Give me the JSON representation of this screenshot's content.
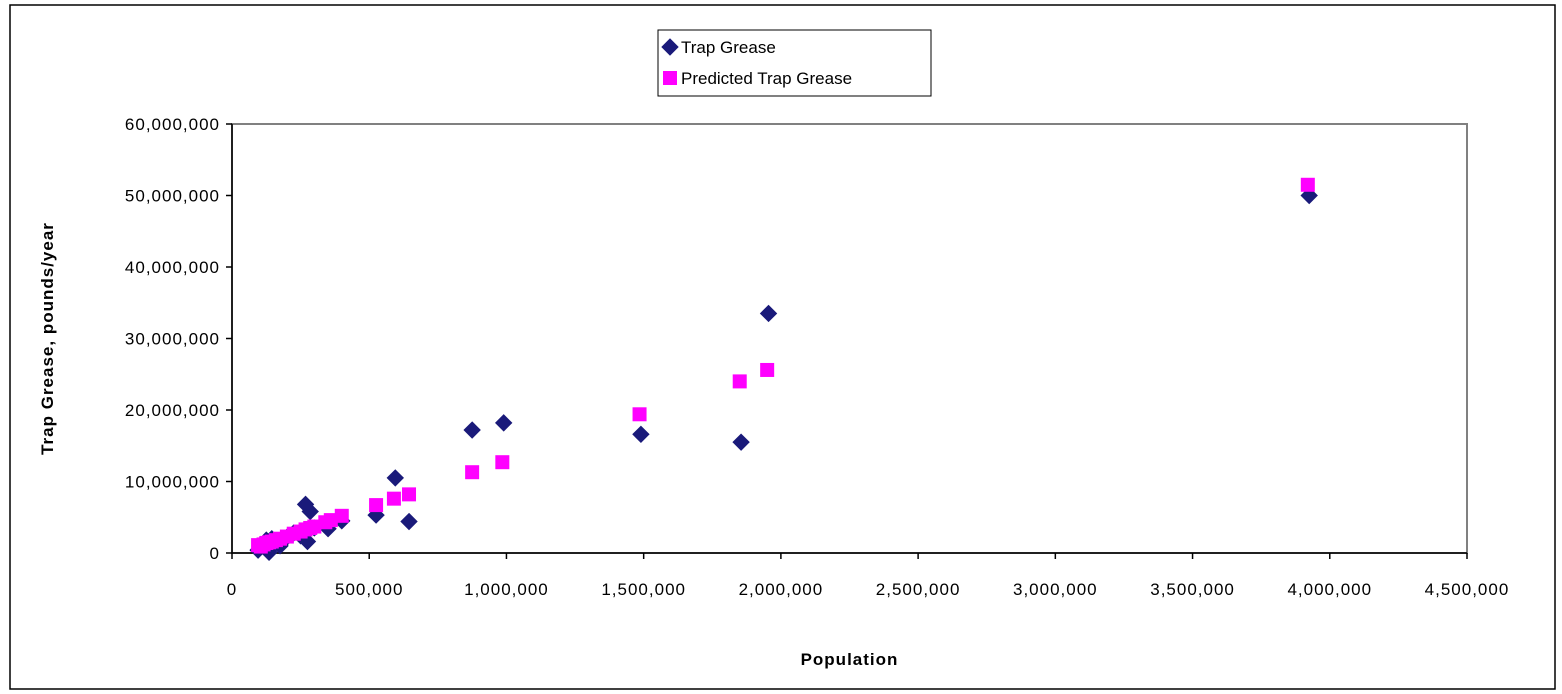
{
  "chart_data": {
    "type": "scatter",
    "title": "",
    "xlabel": "Population",
    "ylabel": "Trap Grease, pounds/year",
    "xlim": [
      0,
      4500000
    ],
    "ylim": [
      0,
      60000000
    ],
    "x_ticks": [
      0,
      500000,
      1000000,
      1500000,
      2000000,
      2500000,
      3000000,
      3500000,
      4000000,
      4500000
    ],
    "y_ticks": [
      0,
      10000000,
      20000000,
      30000000,
      40000000,
      50000000,
      60000000
    ],
    "x_tick_labels": [
      "0",
      "500,000",
      "1,000,000",
      "1,500,000",
      "2,000,000",
      "2,500,000",
      "3,000,000",
      "3,500,000",
      "4,000,000",
      "4,500,000"
    ],
    "y_tick_labels": [
      "0",
      "10,000,000",
      "20,000,000",
      "30,000,000",
      "40,000,000",
      "50,000,000",
      "60,000,000"
    ],
    "grid": false,
    "legend_position": "top-center",
    "series": [
      {
        "name": "Trap Grease",
        "marker": "diamond",
        "color": "#1a1a7a",
        "points": [
          [
            95000,
            400000
          ],
          [
            105000,
            1200000
          ],
          [
            115000,
            900000
          ],
          [
            125000,
            1800000
          ],
          [
            135000,
            100000
          ],
          [
            145000,
            2000000
          ],
          [
            160000,
            1500000
          ],
          [
            175000,
            1000000
          ],
          [
            200000,
            2200000
          ],
          [
            225000,
            2800000
          ],
          [
            250000,
            2400000
          ],
          [
            268000,
            6800000
          ],
          [
            275000,
            1600000
          ],
          [
            285000,
            5800000
          ],
          [
            300000,
            3500000
          ],
          [
            340000,
            4200000
          ],
          [
            350000,
            3400000
          ],
          [
            400000,
            4500000
          ],
          [
            525000,
            5300000
          ],
          [
            595000,
            10500000
          ],
          [
            645000,
            4400000
          ],
          [
            875000,
            17200000
          ],
          [
            990000,
            18200000
          ],
          [
            1490000,
            16600000
          ],
          [
            1855000,
            15500000
          ],
          [
            1955000,
            33500000
          ],
          [
            3925000,
            50000000
          ]
        ]
      },
      {
        "name": "Predicted Trap Grease",
        "marker": "square",
        "color": "#ff00ff",
        "points": [
          [
            95000,
            1100000
          ],
          [
            105000,
            900000
          ],
          [
            115000,
            1200000
          ],
          [
            125000,
            1400000
          ],
          [
            135000,
            1500000
          ],
          [
            145000,
            1600000
          ],
          [
            160000,
            1800000
          ],
          [
            175000,
            2000000
          ],
          [
            200000,
            2300000
          ],
          [
            225000,
            2700000
          ],
          [
            250000,
            3000000
          ],
          [
            268000,
            3300000
          ],
          [
            285000,
            3500000
          ],
          [
            300000,
            3700000
          ],
          [
            340000,
            4300000
          ],
          [
            360000,
            4600000
          ],
          [
            400000,
            5200000
          ],
          [
            525000,
            6700000
          ],
          [
            590000,
            7600000
          ],
          [
            645000,
            8200000
          ],
          [
            875000,
            11300000
          ],
          [
            985000,
            12700000
          ],
          [
            1485000,
            19400000
          ],
          [
            1850000,
            24000000
          ],
          [
            1950000,
            25600000
          ],
          [
            3920000,
            51500000
          ]
        ]
      }
    ]
  }
}
